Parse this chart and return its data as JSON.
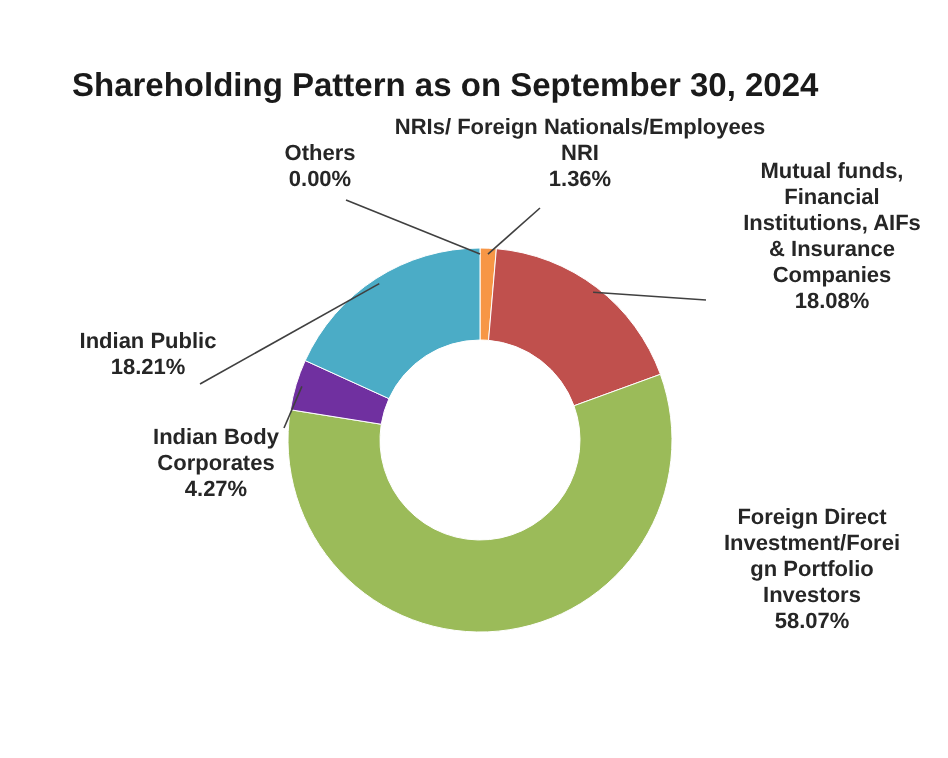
{
  "chart_data": {
    "type": "donut",
    "title": "Shareholding Pattern as on September 30, 2024",
    "categories": [
      "Others",
      "NRIs/ Foreign Nationals/Employees\nNRI",
      "Mutual funds,\nFinancial\nInstitutions, AIFs\n& Insurance\nCompanies",
      "Foreign Direct\nInvestment/Forei\ngn Portfolio\nInvestors",
      "Indian Body\nCorporates",
      "Indian Public"
    ],
    "values": [
      0,
      1.36,
      18.08,
      58.07,
      4.27,
      18.21
    ],
    "colors": [
      "#4f81bd",
      "#f79646",
      "#c0504d",
      "#9bbb59",
      "#7030a0",
      "#4bacc6"
    ],
    "value_labels": [
      "0.00%",
      "1.36%",
      "18.08%",
      "58.07%",
      "4.27%",
      "18.21%"
    ],
    "legend": false
  }
}
